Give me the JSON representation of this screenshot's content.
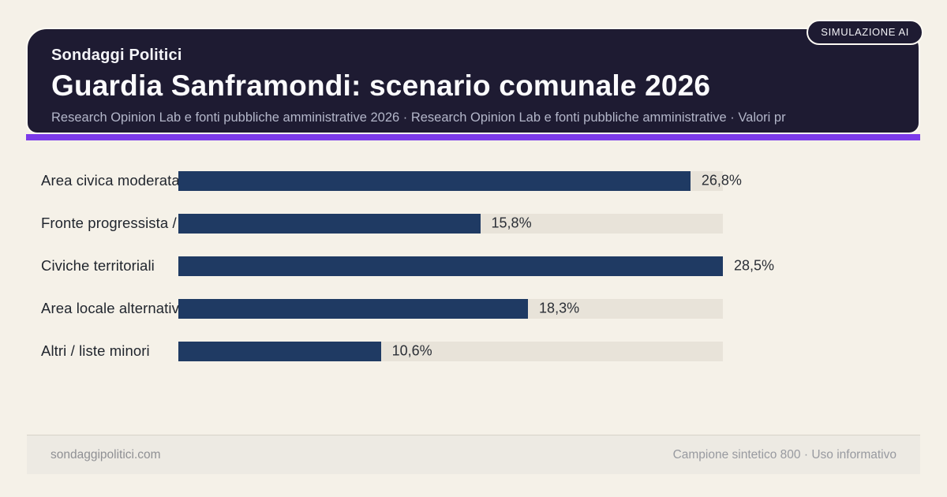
{
  "header": {
    "kicker": "Sondaggi Politici",
    "title": "Guardia Sanframondi: scenario comunale 2026",
    "subtitle": "Research Opinion Lab e fonti pubbliche amministrative 2026 · Research Opinion Lab e fonti pubbliche amministrative · Valori pr",
    "badge": "SIMULAZIONE AI"
  },
  "chart_data": {
    "type": "bar",
    "orientation": "horizontal",
    "categories": [
      "Area civica moderata",
      "Fronte progressista /",
      "Civiche territoriali",
      "Area locale alternativ",
      "Altri / liste minori"
    ],
    "values": [
      26.8,
      15.8,
      28.5,
      18.3,
      10.6
    ],
    "value_labels": [
      "26,8%",
      "15,8%",
      "28,5%",
      "18,3%",
      "10,6%"
    ],
    "xlim": [
      0,
      28.5
    ],
    "bar_color": "#1f3a63",
    "track_color": "#e8e3d9",
    "grid": false,
    "legend": false,
    "title": "Guardia Sanframondi: scenario comunale 2026"
  },
  "footer": {
    "left": "sondaggipolitici.com",
    "right": "Campione sintetico 800 · Uso informativo"
  },
  "colors": {
    "background": "#f5f1e8",
    "card": "#1e1b32",
    "accent": "#7c3bea",
    "bar": "#1f3a63"
  }
}
